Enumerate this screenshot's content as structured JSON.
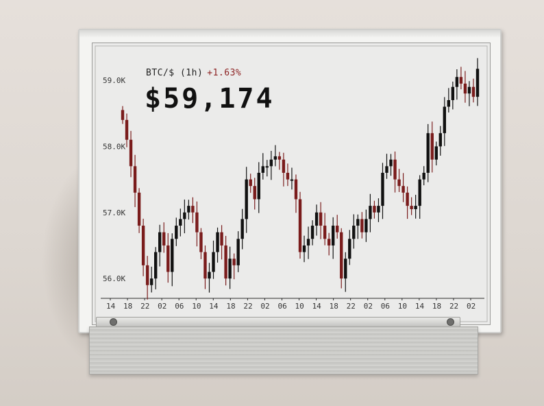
{
  "ticker": {
    "pair": "BTC/$ (1h)",
    "change": "+1.63%"
  },
  "price": "$59,174",
  "colors": {
    "up": "#111111",
    "down": "#7a1c1c",
    "axis": "#2a2a2a",
    "screen": "#ebebea"
  },
  "chart_data": {
    "type": "candlestick",
    "ylim": [
      55700,
      59250
    ],
    "y_ticks": [
      "59.0K",
      "58.0K",
      "57.0K",
      "56.0K"
    ],
    "y_tick_values": [
      59000,
      58000,
      57000,
      56000
    ],
    "x_ticks": [
      "14",
      "18",
      "22",
      "02",
      "06",
      "10",
      "14",
      "18",
      "22",
      "02",
      "06",
      "10",
      "14",
      "18",
      "22",
      "02",
      "06",
      "10",
      "14",
      "18",
      "22",
      "02"
    ],
    "close": [
      58400,
      58100,
      57700,
      57300,
      56800,
      56200,
      55900,
      56000,
      56400,
      56700,
      56500,
      56100,
      56600,
      56800,
      56900,
      57000,
      57100,
      57000,
      56700,
      56400,
      56000,
      56100,
      56400,
      56700,
      56500,
      56000,
      56300,
      56200,
      56600,
      56900,
      57500,
      57400,
      57200,
      57600,
      57700,
      57700,
      57800,
      57850,
      57800,
      57600,
      57500,
      57500,
      57200,
      56400,
      56500,
      56600,
      56800,
      57000,
      56800,
      56600,
      56500,
      56800,
      56700,
      56000,
      56300,
      56600,
      56800,
      56900,
      56700,
      56900,
      57100,
      57000,
      57100,
      57600,
      57700,
      57800,
      57500,
      57400,
      57300,
      57100,
      57050,
      57100,
      57500,
      57600,
      58200,
      57800,
      58000,
      58200,
      58600,
      58700,
      58900,
      59050,
      58950,
      58800,
      58900,
      58750,
      59174
    ]
  }
}
